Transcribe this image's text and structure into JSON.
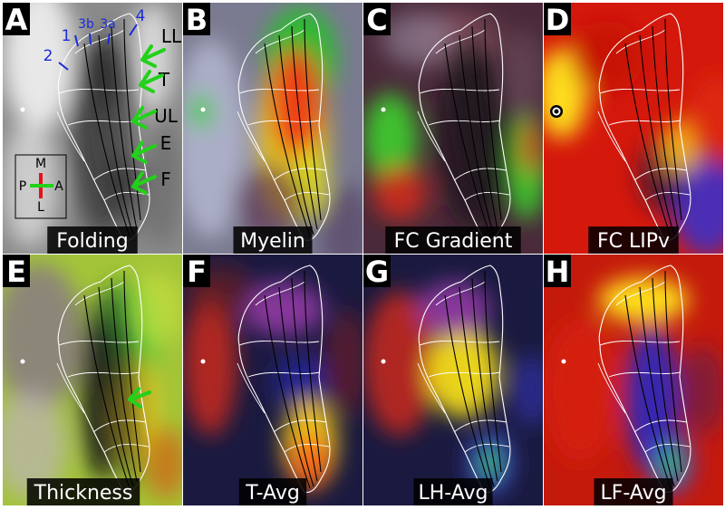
{
  "panels": [
    {
      "letter": "A",
      "caption": "Folding",
      "scheme": "folding"
    },
    {
      "letter": "B",
      "caption": "Myelin",
      "scheme": "myelin"
    },
    {
      "letter": "C",
      "caption": "FC Gradient",
      "scheme": "gradient"
    },
    {
      "letter": "D",
      "caption": "FC LIPv",
      "scheme": "lipv"
    },
    {
      "letter": "E",
      "caption": "Thickness",
      "scheme": "thickness"
    },
    {
      "letter": "F",
      "caption": "T-Avg",
      "scheme": "tavg"
    },
    {
      "letter": "G",
      "caption": "LH-Avg",
      "scheme": "lhavg"
    },
    {
      "letter": "H",
      "caption": "LF-Avg",
      "scheme": "lfavg"
    }
  ],
  "area_labels": [
    "1",
    "2",
    "3b",
    "3a",
    "4"
  ],
  "region_labels": [
    "LL",
    "T",
    "UL",
    "E",
    "F"
  ],
  "orientation": {
    "medial": "M",
    "lateral": "L",
    "posterior": "P",
    "anterior": "A"
  },
  "colors": {
    "area_label": "#1a2bd6",
    "arrow": "#22d11a",
    "border": "#ffffff",
    "sulcus": "#000000",
    "panel_letter_bg": "#000000",
    "panel_letter_fg": "#ffffff"
  }
}
